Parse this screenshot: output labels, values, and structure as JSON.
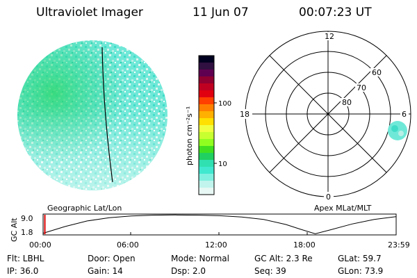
{
  "header": {
    "title": "Ultraviolet Imager",
    "date": "11 Jun 07",
    "time": "00:07:23 UT"
  },
  "colorbar": {
    "unit_label": "photon cm⁻²s⁻¹",
    "ticks": [
      "100",
      "10"
    ],
    "colors": [
      "#000020",
      "#301040",
      "#600050",
      "#900030",
      "#c00020",
      "#e00010",
      "#ff4000",
      "#ff8000",
      "#ffb000",
      "#ffe000",
      "#f0ff40",
      "#c8ff30",
      "#90ff20",
      "#40e020",
      "#20d060",
      "#30e0b0",
      "#40e8d0",
      "#80f0e0",
      "#c0f4ec",
      "#e8f8f4"
    ]
  },
  "polar_plot": {
    "labels": {
      "top": "12",
      "left": "18",
      "right": "6",
      "bottom": "0",
      "ring_60": "60",
      "ring_70": "70",
      "ring_80": "80"
    }
  },
  "altitude_strip": {
    "y_axis_label": "GC Alt",
    "y_ticks": [
      "9.0",
      "1.8"
    ],
    "left_title": "Geographic Lat/Lon",
    "right_title": "Apex MLat/MLT",
    "x_ticks": [
      "00:00",
      "06:00",
      "12:00",
      "18:00",
      "23:59"
    ],
    "altitude_series": [
      {
        "hour": 0.0,
        "alt": 1.9
      },
      {
        "hour": 1.5,
        "alt": 4.6
      },
      {
        "hour": 3.0,
        "alt": 6.8
      },
      {
        "hour": 4.5,
        "alt": 8.1
      },
      {
        "hour": 6.0,
        "alt": 8.8
      },
      {
        "hour": 7.5,
        "alt": 9.1
      },
      {
        "hour": 9.0,
        "alt": 9.2
      },
      {
        "hour": 10.5,
        "alt": 9.1
      },
      {
        "hour": 12.0,
        "alt": 8.9
      },
      {
        "hour": 13.5,
        "alt": 8.4
      },
      {
        "hour": 15.0,
        "alt": 7.4
      },
      {
        "hour": 16.5,
        "alt": 5.4
      },
      {
        "hour": 17.5,
        "alt": 3.5
      },
      {
        "hour": 18.5,
        "alt": 1.7
      },
      {
        "hour": 19.5,
        "alt": 3.2
      },
      {
        "hour": 21.0,
        "alt": 5.6
      },
      {
        "hour": 22.5,
        "alt": 7.4
      },
      {
        "hour": 23.98,
        "alt": 8.5
      }
    ],
    "current_hour": 0.12,
    "marker_color": "#dd0000"
  },
  "info": {
    "row1": {
      "filter": "Flt: LBHL",
      "door": "Door: Open",
      "mode": "Mode: Normal",
      "gc_alt": "GC Alt: 2.3 Re",
      "glat": "GLat:  59.7"
    },
    "row2": {
      "ip": "IP: 36.0",
      "gain": "Gain: 14",
      "dsp": "Dsp:     2.0",
      "seq": "Seq: 39",
      "glon": "GLon:  73.9"
    }
  }
}
